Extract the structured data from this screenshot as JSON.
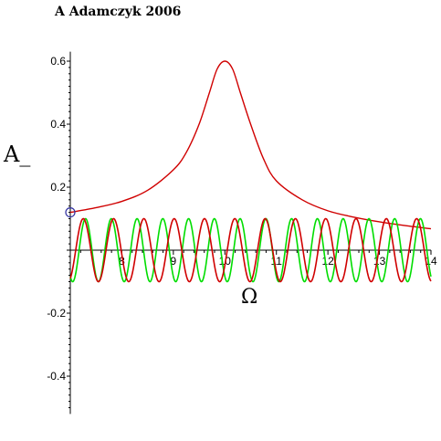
{
  "title": "A Adamczyk   2006",
  "chart_data": {
    "type": "line",
    "xlabel": "Ω",
    "ylabel": "A_",
    "xlim": [
      7,
      14
    ],
    "ylim": [
      -0.52,
      0.63
    ],
    "x_ticks": [
      8,
      9,
      10,
      11,
      12,
      13,
      14
    ],
    "y_ticks": [
      -0.4,
      -0.2,
      0.2,
      0.4,
      0.6
    ],
    "y_tick_labels": [
      "-0.4",
      "-0.2",
      "0.2",
      "0.4",
      "0.6"
    ],
    "grid": false,
    "series": [
      {
        "color": "#d00000",
        "description_values": "amplitude resonance curve",
        "x": [
          7.0,
          7.5,
          8.0,
          8.5,
          9.0,
          9.25,
          9.5,
          9.7,
          9.85,
          10.0,
          10.15,
          10.3,
          10.5,
          10.75,
          11.0,
          11.5,
          12.0,
          12.5,
          13.0,
          13.5,
          14.0
        ],
        "values": [
          0.12,
          0.135,
          0.155,
          0.19,
          0.255,
          0.31,
          0.4,
          0.5,
          0.575,
          0.6,
          0.575,
          0.5,
          0.4,
          0.29,
          0.22,
          0.16,
          0.125,
          0.105,
          0.09,
          0.078,
          0.068
        ]
      },
      {
        "color": "#00dd00",
        "x_start": 7.0,
        "x_end": 14.0,
        "amplitude": 0.1,
        "frequency": 2.0,
        "phase": -2.15
      },
      {
        "color": "#d00000",
        "x_start": 7.0,
        "x_end": 14.0,
        "amplitude": 0.1,
        "frequency": 1.7,
        "phase": -1.12
      }
    ],
    "marker": {
      "x": 7.0,
      "y": 0.12,
      "shape": "circle",
      "color": "#3030a0"
    }
  }
}
